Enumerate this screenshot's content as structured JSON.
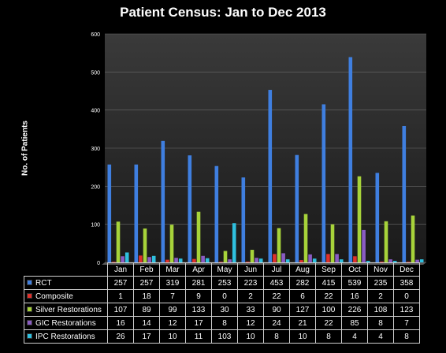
{
  "chart_data": {
    "type": "bar",
    "title": "Patient Census: Jan to Dec 2013",
    "xlabel": "",
    "ylabel": "No. of Patients",
    "ylim": [
      0,
      600
    ],
    "yticks": [
      "0",
      "100",
      "200",
      "300",
      "400",
      "500",
      "600"
    ],
    "grid": true,
    "legend": "table-below",
    "categories": [
      "Jan",
      "Feb",
      "Mar",
      "Apr",
      "May",
      "Jun",
      "Jul",
      "Aug",
      "Sep",
      "Oct",
      "Nov",
      "Dec"
    ],
    "series": [
      {
        "name": "RCT",
        "color": "#3f7fe0",
        "values": [
          257,
          257,
          319,
          281,
          253,
          223,
          453,
          282,
          415,
          539,
          235,
          358
        ]
      },
      {
        "name": "Composite",
        "color": "#e0302c",
        "values": [
          1,
          18,
          7,
          9,
          0,
          2,
          22,
          6,
          22,
          16,
          2,
          0
        ]
      },
      {
        "name": "Silver Restorations",
        "color": "#a7d33a",
        "values": [
          107,
          89,
          99,
          133,
          30,
          33,
          90,
          127,
          100,
          226,
          108,
          123
        ]
      },
      {
        "name": "GIC Restorations",
        "color": "#8a5cc4",
        "values": [
          16,
          14,
          12,
          17,
          8,
          12,
          24,
          21,
          22,
          85,
          8,
          7
        ]
      },
      {
        "name": "IPC Restorations",
        "color": "#2fc0df",
        "values": [
          26,
          17,
          10,
          11,
          103,
          10,
          8,
          10,
          8,
          4,
          4,
          8
        ]
      }
    ]
  }
}
